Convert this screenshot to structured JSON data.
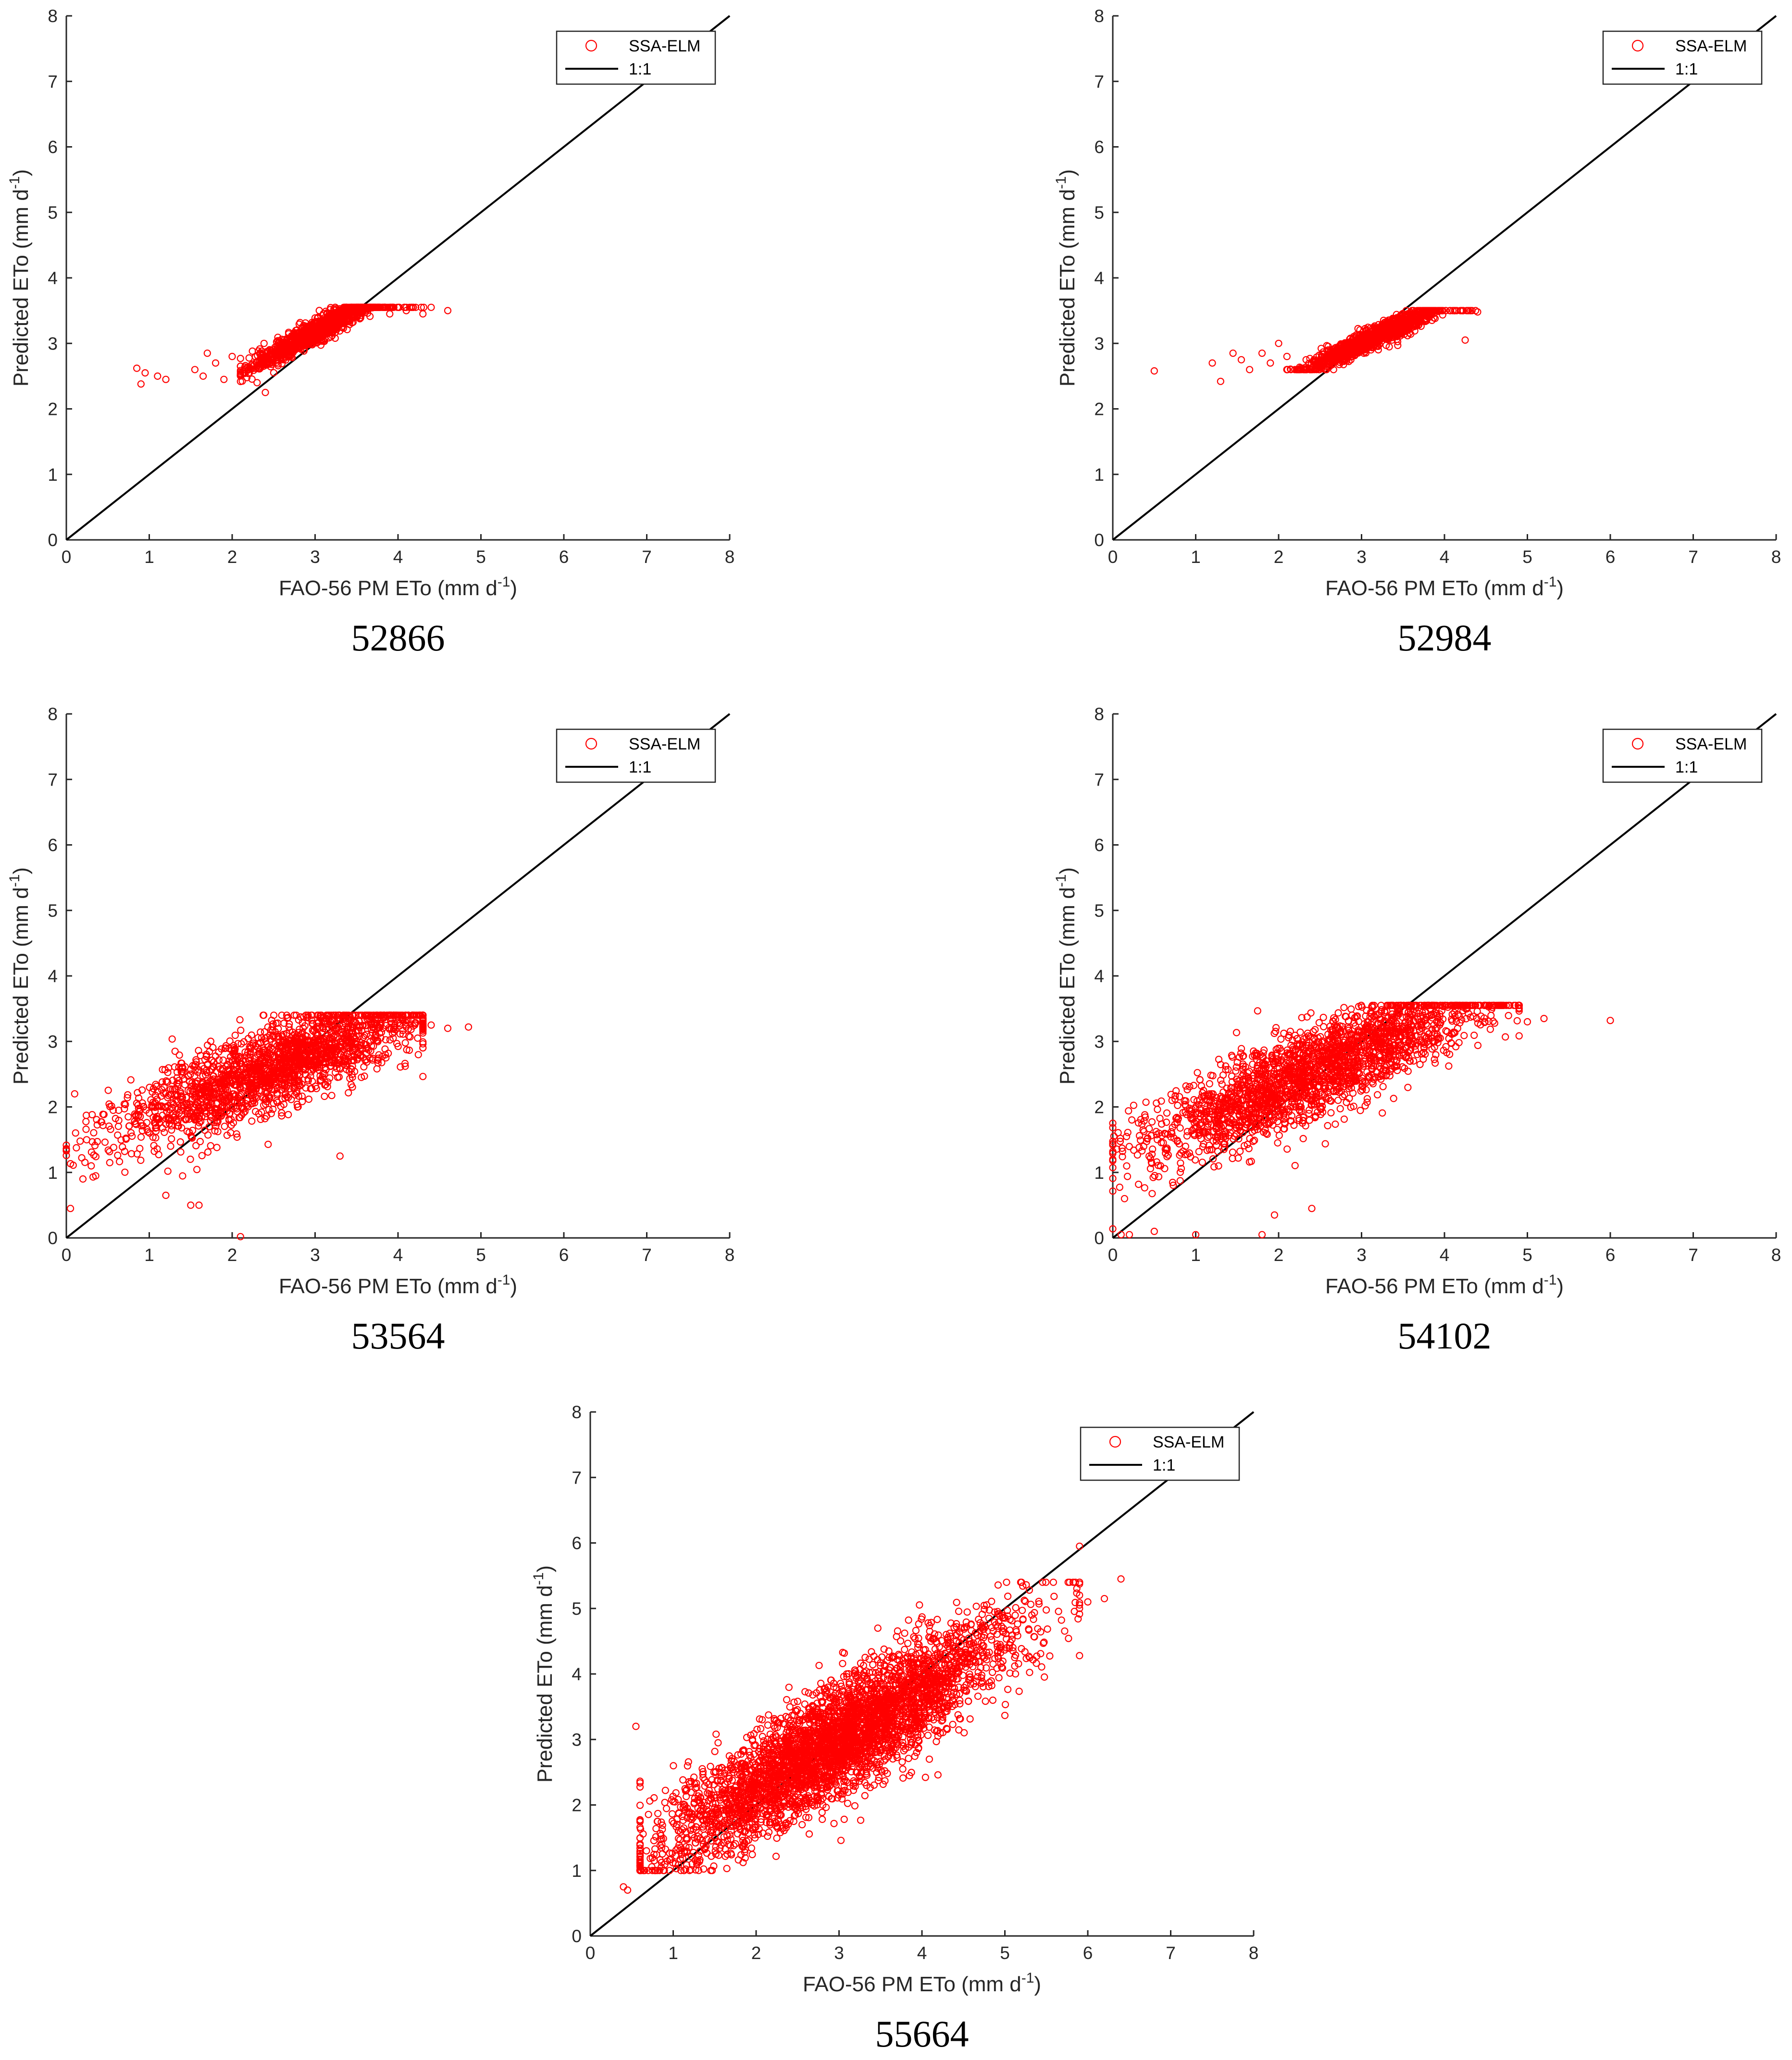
{
  "chart_data": [
    {
      "type": "scatter",
      "title": "",
      "caption": "52866",
      "xlabel": "FAO-56 PM ETo (mm d-1)",
      "xlabel_main": "FAO-56 PM ETo (mm d",
      "xlabel_sup": "-1",
      "ylabel": "Predicted ETo (mm d-1)",
      "ylabel_main": "Predicted ETo (mm d",
      "ylabel_sup": "-1",
      "xlim": [
        0,
        8
      ],
      "ylim": [
        0,
        8
      ],
      "xticks": [
        "0",
        "1",
        "2",
        "3",
        "4",
        "5",
        "6",
        "7",
        "8"
      ],
      "yticks": [
        "0",
        "1",
        "2",
        "3",
        "4",
        "5",
        "6",
        "7",
        "8"
      ],
      "legend": {
        "position": "top-right",
        "entries": [
          "SSA-ELM",
          "1:1"
        ]
      },
      "series": [
        {
          "name": "SSA-ELM",
          "marker": "circle",
          "color": "#ff0000",
          "points": [
            [
              0.85,
              2.62
            ],
            [
              0.9,
              2.38
            ],
            [
              0.95,
              2.55
            ],
            [
              1.1,
              2.5
            ],
            [
              1.2,
              2.45
            ],
            [
              1.55,
              2.6
            ],
            [
              1.65,
              2.5
            ],
            [
              1.7,
              2.85
            ],
            [
              1.8,
              2.7
            ],
            [
              1.9,
              2.45
            ],
            [
              2.0,
              2.8
            ],
            [
              2.1,
              2.65
            ],
            [
              2.2,
              2.6
            ],
            [
              2.3,
              2.4
            ],
            [
              2.4,
              2.25
            ],
            [
              3.9,
              3.45
            ],
            [
              4.1,
              3.5
            ],
            [
              4.3,
              3.45
            ],
            [
              4.6,
              3.5
            ]
          ],
          "cluster": {
            "n": 1200,
            "x_mean": 3.05,
            "x_sd": 0.42,
            "x_min": 2.1,
            "x_max": 4.4,
            "slope": 0.72,
            "intercept": 1.02,
            "y_sd": 0.09,
            "y_min": 2.3,
            "y_max": 3.55
          }
        },
        {
          "name": "1:1",
          "type": "line",
          "color": "#000000",
          "x": [
            0,
            8
          ],
          "y": [
            0,
            8
          ]
        }
      ]
    },
    {
      "type": "scatter",
      "title": "",
      "caption": "52984",
      "xlabel": "FAO-56 PM ETo (mm d-1)",
      "xlabel_main": "FAO-56 PM ETo (mm d",
      "xlabel_sup": "-1",
      "ylabel": "Predicted ETo (mm d-1)",
      "ylabel_main": "Predicted ETo (mm d",
      "ylabel_sup": "-1",
      "xlim": [
        0,
        8
      ],
      "ylim": [
        0,
        8
      ],
      "xticks": [
        "0",
        "1",
        "2",
        "3",
        "4",
        "5",
        "6",
        "7",
        "8"
      ],
      "yticks": [
        "0",
        "1",
        "2",
        "3",
        "4",
        "5",
        "6",
        "7",
        "8"
      ],
      "legend": {
        "position": "top-right",
        "entries": [
          "SSA-ELM",
          "1:1"
        ]
      },
      "series": [
        {
          "name": "SSA-ELM",
          "marker": "circle",
          "color": "#ff0000",
          "points": [
            [
              0.5,
              2.58
            ],
            [
              1.2,
              2.7
            ],
            [
              1.3,
              2.42
            ],
            [
              1.45,
              2.85
            ],
            [
              1.55,
              2.75
            ],
            [
              1.65,
              2.6
            ],
            [
              1.8,
              2.85
            ],
            [
              1.9,
              2.7
            ],
            [
              2.0,
              3.0
            ],
            [
              2.1,
              2.8
            ],
            [
              4.25,
              3.05
            ],
            [
              4.4,
              3.48
            ]
          ],
          "cluster": {
            "n": 1200,
            "x_mean": 3.15,
            "x_sd": 0.42,
            "x_min": 2.1,
            "x_max": 4.4,
            "slope": 0.6,
            "intercept": 1.2,
            "y_sd": 0.08,
            "y_min": 2.6,
            "y_max": 3.5
          }
        },
        {
          "name": "1:1",
          "type": "line",
          "color": "#000000",
          "x": [
            0,
            8
          ],
          "y": [
            0,
            8
          ]
        }
      ]
    },
    {
      "type": "scatter",
      "title": "",
      "caption": "53564",
      "xlabel": "FAO-56 PM ETo (mm d-1)",
      "xlabel_main": "FAO-56 PM ETo (mm d",
      "xlabel_sup": "-1",
      "ylabel": "Predicted ETo (mm d-1)",
      "ylabel_main": "Predicted ETo (mm d",
      "ylabel_sup": "-1",
      "xlim": [
        0,
        8
      ],
      "ylim": [
        0,
        8
      ],
      "xticks": [
        "0",
        "1",
        "2",
        "3",
        "4",
        "5",
        "6",
        "7",
        "8"
      ],
      "yticks": [
        "0",
        "1",
        "2",
        "3",
        "4",
        "5",
        "6",
        "7",
        "8"
      ],
      "legend": {
        "position": "top-right",
        "entries": [
          "SSA-ELM",
          "1:1"
        ]
      },
      "series": [
        {
          "name": "SSA-ELM",
          "marker": "circle",
          "color": "#ff0000",
          "points": [
            [
              0.05,
              0.45
            ],
            [
              0.1,
              2.2
            ],
            [
              0.2,
              0.9
            ],
            [
              0.3,
              1.1
            ],
            [
              1.2,
              0.65
            ],
            [
              1.5,
              0.5
            ],
            [
              1.6,
              0.5
            ],
            [
              2.1,
              0.02
            ],
            [
              3.3,
              1.25
            ],
            [
              4.4,
              3.25
            ],
            [
              4.6,
              3.2
            ],
            [
              4.85,
              3.22
            ]
          ],
          "cluster": {
            "n": 2000,
            "x_mean": 2.55,
            "x_sd": 0.95,
            "x_min": 0.0,
            "x_max": 4.3,
            "slope": 0.5,
            "intercept": 1.35,
            "y_sd": 0.33,
            "y_min": 0.8,
            "y_max": 3.4
          }
        },
        {
          "name": "1:1",
          "type": "line",
          "color": "#000000",
          "x": [
            0,
            8
          ],
          "y": [
            0,
            8
          ]
        }
      ]
    },
    {
      "type": "scatter",
      "title": "",
      "caption": "54102",
      "xlabel": "FAO-56 PM ETo (mm d-1)",
      "xlabel_main": "FAO-56 PM ETo (mm d",
      "xlabel_sup": "-1",
      "ylabel": "Predicted ETo (mm d-1)",
      "ylabel_main": "Predicted ETo (mm d",
      "ylabel_sup": "-1",
      "xlim": [
        0,
        8
      ],
      "ylim": [
        0,
        8
      ],
      "xticks": [
        "0",
        "1",
        "2",
        "3",
        "4",
        "5",
        "6",
        "7",
        "8"
      ],
      "yticks": [
        "0",
        "1",
        "2",
        "3",
        "4",
        "5",
        "6",
        "7",
        "8"
      ],
      "legend": {
        "position": "top-right",
        "entries": [
          "SSA-ELM",
          "1:1"
        ]
      },
      "series": [
        {
          "name": "SSA-ELM",
          "marker": "circle",
          "color": "#ff0000",
          "points": [
            [
              0.1,
              0.05
            ],
            [
              0.2,
              0.05
            ],
            [
              0.5,
              0.1
            ],
            [
              1.0,
              0.05
            ],
            [
              1.8,
              0.05
            ],
            [
              1.95,
              0.35
            ],
            [
              2.4,
              0.45
            ],
            [
              5.0,
              3.3
            ],
            [
              5.2,
              3.35
            ],
            [
              6.0,
              3.32
            ]
          ],
          "cluster": {
            "n": 2200,
            "x_mean": 2.45,
            "x_sd": 1.05,
            "x_min": 0.0,
            "x_max": 4.9,
            "slope": 0.55,
            "intercept": 1.2,
            "y_sd": 0.35,
            "y_min": 0.1,
            "y_max": 3.55
          }
        },
        {
          "name": "1:1",
          "type": "line",
          "color": "#000000",
          "x": [
            0,
            8
          ],
          "y": [
            0,
            8
          ]
        }
      ]
    },
    {
      "type": "scatter",
      "title": "",
      "caption": "55664",
      "xlabel": "FAO-56 PM ETo (mm d-1)",
      "xlabel_main": "FAO-56 PM ETo (mm d",
      "xlabel_sup": "-1",
      "ylabel": "Predicted ETo (mm d-1)",
      "ylabel_main": "Predicted ETo (mm d",
      "ylabel_sup": "-1",
      "xlim": [
        0,
        8
      ],
      "ylim": [
        0,
        8
      ],
      "xticks": [
        "0",
        "1",
        "2",
        "3",
        "4",
        "5",
        "6",
        "7",
        "8"
      ],
      "yticks": [
        "0",
        "1",
        "2",
        "3",
        "4",
        "5",
        "6",
        "7",
        "8"
      ],
      "legend": {
        "position": "top-right",
        "entries": [
          "SSA-ELM",
          "1:1"
        ]
      },
      "series": [
        {
          "name": "SSA-ELM",
          "marker": "circle",
          "color": "#ff0000",
          "points": [
            [
              0.4,
              0.75
            ],
            [
              0.45,
              0.7
            ],
            [
              0.55,
              3.2
            ],
            [
              0.6,
              1.0
            ],
            [
              5.9,
              5.95
            ],
            [
              6.0,
              5.1
            ],
            [
              6.2,
              5.15
            ],
            [
              6.4,
              5.45
            ]
          ],
          "cluster": {
            "n": 3800,
            "x_mean": 2.95,
            "x_sd": 1.05,
            "x_min": 0.6,
            "x_max": 5.9,
            "slope": 0.75,
            "intercept": 0.75,
            "y_sd": 0.42,
            "y_min": 1.0,
            "y_max": 5.4
          }
        },
        {
          "name": "1:1",
          "type": "line",
          "color": "#000000",
          "x": [
            0,
            8
          ],
          "y": [
            0,
            8
          ]
        }
      ]
    }
  ]
}
